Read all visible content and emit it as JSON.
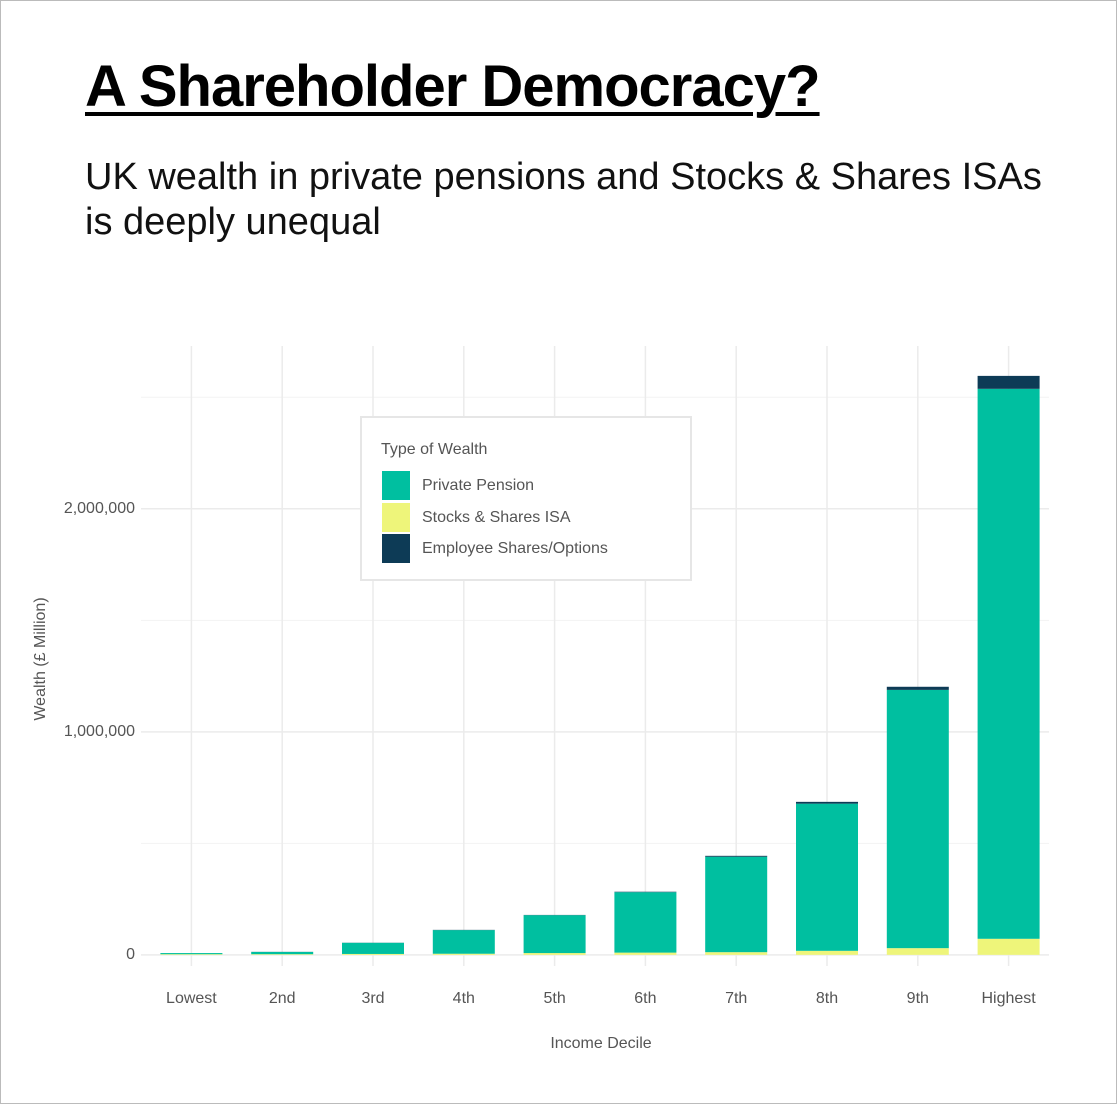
{
  "chart_data": {
    "type": "stacked_bar",
    "title": "A Shareholder Democracy?",
    "subtitle": "UK wealth in private pensions and Stocks & Shares ISAs is deeply unequal",
    "x_label": "Income Decile",
    "y_label": "Wealth (£ Million)",
    "legend_title": "Type of Wealth",
    "categories": [
      "Lowest",
      "2nd",
      "3rd",
      "4th",
      "5th",
      "6th",
      "7th",
      "8th",
      "9th",
      "Highest"
    ],
    "series": [
      {
        "name": "Private Pension",
        "color": "#00bfa0",
        "values": [
          5000,
          10000,
          50000,
          106000,
          170000,
          271000,
          428000,
          660000,
          1158000,
          2466000
        ]
      },
      {
        "name": "Stocks & Shares ISA",
        "color": "#eef57a",
        "values": [
          3000,
          3000,
          4000,
          5000,
          8000,
          10000,
          12000,
          18000,
          30000,
          72000
        ]
      },
      {
        "name": "Employee Shares/Options",
        "color": "#0d3b56",
        "values": [
          0,
          500,
          500,
          1000,
          1000,
          2000,
          4000,
          8000,
          14000,
          58000
        ]
      }
    ],
    "ylim": [
      -50000,
      2730000
    ],
    "yticks": [
      0,
      {
        "value": 1000000,
        "label": "1,000,000"
      },
      {
        "value": 2000000,
        "label": "2,000,000"
      }
    ],
    "minor_yticks": [
      500000,
      1500000,
      2500000
    ],
    "grid": true
  }
}
